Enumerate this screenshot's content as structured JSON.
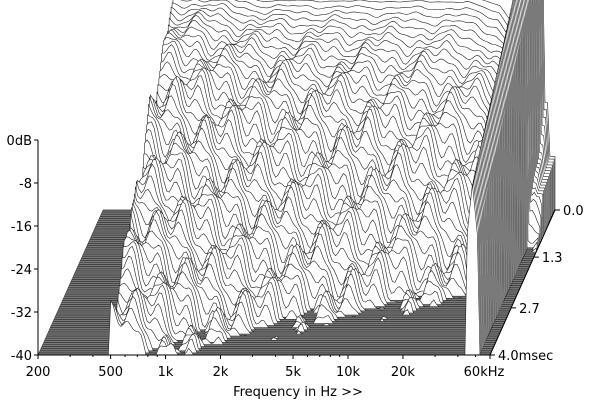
{
  "chart_data": {
    "type": "waterfall",
    "title": "",
    "xlabel": "Frequency in Hz >>",
    "ylabel": "",
    "zlabel": "",
    "x_scale": "log",
    "x_range_hz": [
      200,
      60000
    ],
    "x_ticks": [
      {
        "value": 200,
        "label": "200"
      },
      {
        "value": 500,
        "label": "500"
      },
      {
        "value": 1000,
        "label": "1k"
      },
      {
        "value": 2000,
        "label": "2k"
      },
      {
        "value": 5000,
        "label": "5k"
      },
      {
        "value": 10000,
        "label": "10k"
      },
      {
        "value": 20000,
        "label": "20k"
      },
      {
        "value": 60000,
        "label": "60kHz"
      }
    ],
    "y_range_db": [
      -40,
      0
    ],
    "y_ticks": [
      {
        "value": 0,
        "label": "0dB"
      },
      {
        "value": -8,
        "label": "-8"
      },
      {
        "value": -16,
        "label": "-16"
      },
      {
        "value": -24,
        "label": "-24"
      },
      {
        "value": -32,
        "label": "-32"
      },
      {
        "value": -40,
        "label": "-40"
      }
    ],
    "time_range_ms": [
      0,
      4.0
    ],
    "time_ticks": [
      {
        "value": 0.0,
        "label": "0.0"
      },
      {
        "value": 1.3,
        "label": "1.3"
      },
      {
        "value": 2.7,
        "label": "2.7"
      },
      {
        "value": 4.0,
        "label": "4.0msec"
      }
    ],
    "grid": false,
    "colors": {
      "floor": "#7a7a7a",
      "slice_line": "#222222",
      "slice_fill": "#ffffff"
    },
    "slice_count": 70,
    "initial_response_db": [
      {
        "hz": 500,
        "db": 2
      },
      {
        "hz": 800,
        "db": 2
      },
      {
        "hz": 1500,
        "db": 0
      },
      {
        "hz": 3000,
        "db": 0
      },
      {
        "hz": 5000,
        "db": 0
      },
      {
        "hz": 10000,
        "db": 0
      },
      {
        "hz": 20000,
        "db": 0
      },
      {
        "hz": 30000,
        "db": -2
      },
      {
        "hz": 40000,
        "db": -8
      },
      {
        "hz": 45000,
        "db": -20
      },
      {
        "hz": 55000,
        "db": -20
      }
    ],
    "breakup_peak_khz": 48
  }
}
